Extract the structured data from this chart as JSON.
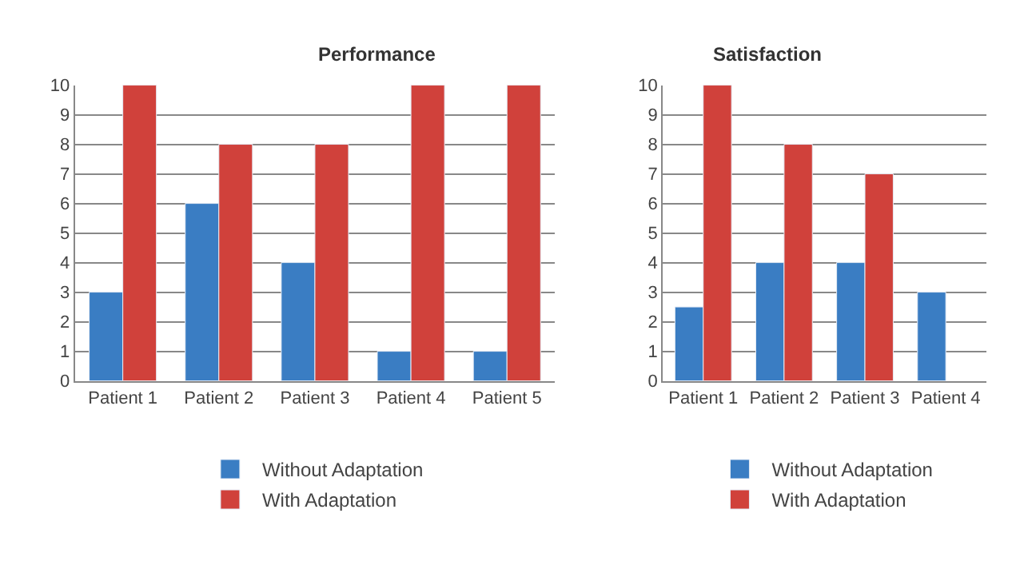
{
  "chart_data": [
    {
      "type": "bar",
      "title": "Performance",
      "categories": [
        "Patient 1",
        "Patient 2",
        "Patient 3",
        "Patient 4",
        "Patient 5"
      ],
      "series": [
        {
          "name": "Without Adaptation",
          "color": "#3a7dc3",
          "values": [
            3,
            6,
            4,
            1,
            1
          ]
        },
        {
          "name": "With Adaptation",
          "color": "#d0413b",
          "values": [
            10,
            8,
            8,
            10,
            10
          ]
        }
      ],
      "ylim": [
        0,
        10
      ],
      "yticks": [
        0,
        1,
        2,
        3,
        4,
        5,
        6,
        7,
        8,
        9,
        10
      ],
      "grid": "y",
      "legend": "bottom"
    },
    {
      "type": "bar",
      "title": "Satisfaction",
      "categories": [
        "Patient 1",
        "Patient 2",
        "Patient 3",
        "Patient 4"
      ],
      "series": [
        {
          "name": "Without Adaptation",
          "color": "#3a7dc3",
          "values": [
            2.5,
            4,
            4,
            3
          ]
        },
        {
          "name": "With Adaptation",
          "color": "#d0413b",
          "values": [
            10,
            8,
            7,
            null
          ]
        }
      ],
      "ylim": [
        0,
        10
      ],
      "yticks": [
        0,
        1,
        2,
        3,
        4,
        5,
        6,
        7,
        8,
        9,
        10
      ],
      "grid": "y",
      "legend": "bottom"
    }
  ]
}
